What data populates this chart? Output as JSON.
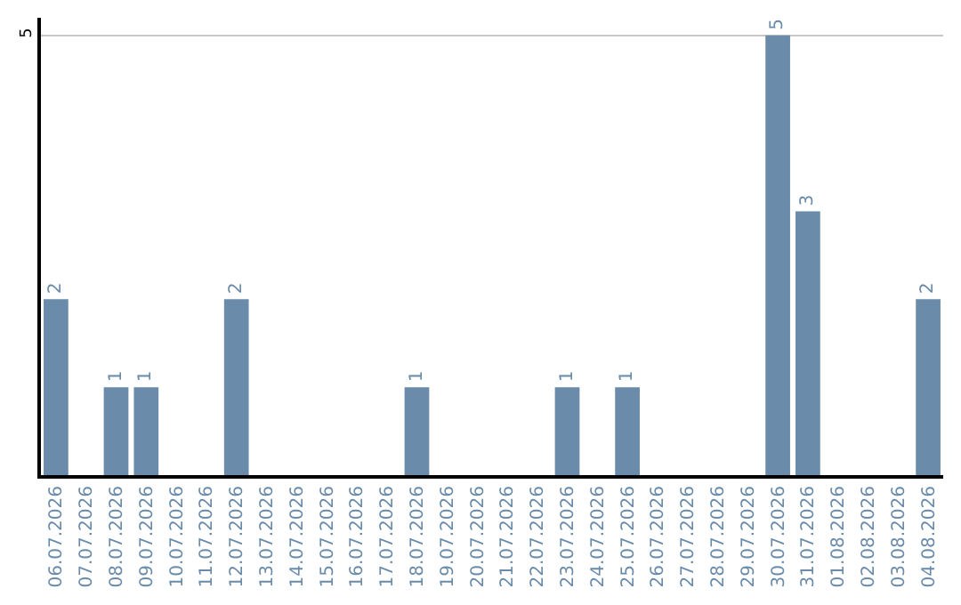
{
  "chart_data": {
    "type": "bar",
    "categories": [
      "06.07.2026",
      "07.07.2026",
      "08.07.2026",
      "09.07.2026",
      "10.07.2026",
      "11.07.2026",
      "12.07.2026",
      "13.07.2026",
      "14.07.2026",
      "15.07.2026",
      "16.07.2026",
      "17.07.2026",
      "18.07.2026",
      "19.07.2026",
      "20.07.2026",
      "21.07.2026",
      "22.07.2026",
      "23.07.2026",
      "24.07.2026",
      "25.07.2026",
      "26.07.2026",
      "27.07.2026",
      "28.07.2026",
      "29.07.2026",
      "30.07.2026",
      "31.07.2026",
      "01.08.2026",
      "02.08.2026",
      "03.08.2026",
      "04.08.2026"
    ],
    "values": [
      2,
      0,
      1,
      1,
      0,
      0,
      2,
      0,
      0,
      0,
      0,
      0,
      1,
      0,
      0,
      0,
      0,
      1,
      0,
      1,
      0,
      0,
      0,
      0,
      5,
      3,
      0,
      0,
      0,
      2
    ],
    "value_labels": [
      "2",
      null,
      "1",
      "1",
      null,
      null,
      "2",
      null,
      null,
      null,
      null,
      null,
      "1",
      null,
      null,
      null,
      null,
      "1",
      null,
      "1",
      null,
      null,
      null,
      null,
      "5",
      "3",
      null,
      null,
      null,
      "2"
    ],
    "color": "#6a8caa",
    "ylim": [
      0,
      5.2
    ],
    "yticks": [
      5
    ],
    "grid": "y"
  }
}
